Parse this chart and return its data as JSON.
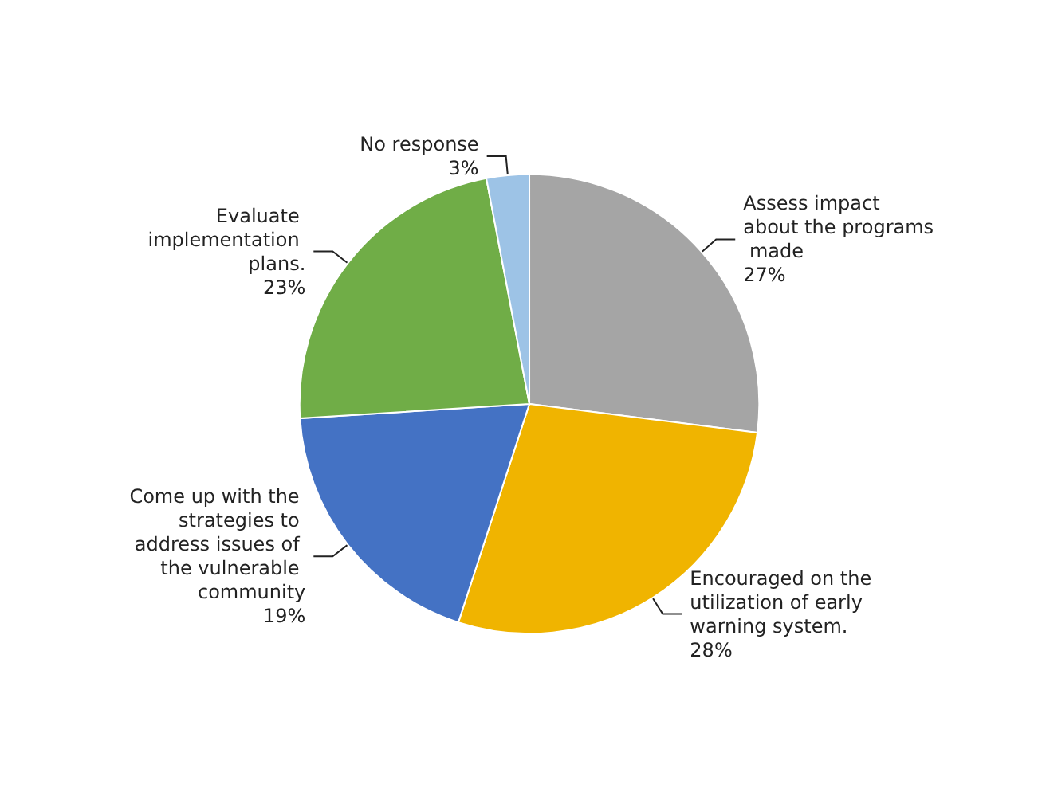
{
  "chart_data": {
    "type": "pie",
    "categories": [
      "Assess impact about the programs made",
      "Encouraged on the utilization of early warning system.",
      "Come up with the strategies to address issues of the vulnerable community",
      "Evaluate implementation plans.",
      "No response"
    ],
    "values": [
      27,
      28,
      19,
      23,
      3
    ],
    "colors": [
      "#a5a5a5",
      "#f0b400",
      "#4472c4",
      "#70ad47",
      "#9dc3e6"
    ],
    "value_labels": [
      "27%",
      "28%",
      "19%",
      "23%",
      "3%"
    ]
  }
}
